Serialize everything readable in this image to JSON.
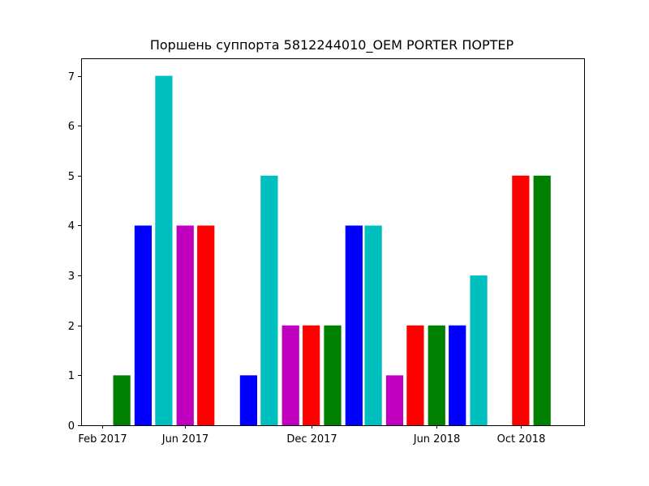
{
  "chart_data": {
    "type": "bar",
    "title": "Поршень суппорта 5812244010_OEM PORTER ПОРТЕР",
    "xlabel": "",
    "ylabel": "",
    "x_ticks": [
      "Feb 2017",
      "Jun 2017",
      "Dec 2017",
      "Jun 2018",
      "Oct 2018"
    ],
    "x_tick_dates": [
      "2017-02-01",
      "2017-06-01",
      "2017-12-01",
      "2018-06-01",
      "2018-10-01"
    ],
    "xlim": [
      "2017-01-01",
      "2019-01-01"
    ],
    "y_ticks": [
      0,
      1,
      2,
      3,
      4,
      5,
      6,
      7
    ],
    "ylim": [
      0,
      7.35
    ],
    "grid": false,
    "bars": [
      {
        "month": "2017-03",
        "value": 1,
        "color": "#008000"
      },
      {
        "month": "2017-04",
        "value": 4,
        "color": "#0000ff"
      },
      {
        "month": "2017-05",
        "value": 7,
        "color": "#00bfbf"
      },
      {
        "month": "2017-06",
        "value": 4,
        "color": "#bf00bf"
      },
      {
        "month": "2017-07",
        "value": 4,
        "color": "#ff0000"
      },
      {
        "month": "2017-09",
        "value": 1,
        "color": "#0000ff"
      },
      {
        "month": "2017-10",
        "value": 5,
        "color": "#00bfbf"
      },
      {
        "month": "2017-11",
        "value": 2,
        "color": "#bf00bf"
      },
      {
        "month": "2017-12",
        "value": 2,
        "color": "#ff0000"
      },
      {
        "month": "2018-01",
        "value": 2,
        "color": "#008000"
      },
      {
        "month": "2018-02",
        "value": 4,
        "color": "#0000ff"
      },
      {
        "month": "2018-03",
        "value": 4,
        "color": "#00bfbf"
      },
      {
        "month": "2018-04",
        "value": 1,
        "color": "#bf00bf"
      },
      {
        "month": "2018-05",
        "value": 2,
        "color": "#ff0000"
      },
      {
        "month": "2018-06",
        "value": 2,
        "color": "#008000"
      },
      {
        "month": "2018-07",
        "value": 2,
        "color": "#0000ff"
      },
      {
        "month": "2018-08",
        "value": 3,
        "color": "#00bfbf"
      },
      {
        "month": "2018-10",
        "value": 5,
        "color": "#ff0000"
      },
      {
        "month": "2018-11",
        "value": 5,
        "color": "#008000"
      }
    ]
  }
}
